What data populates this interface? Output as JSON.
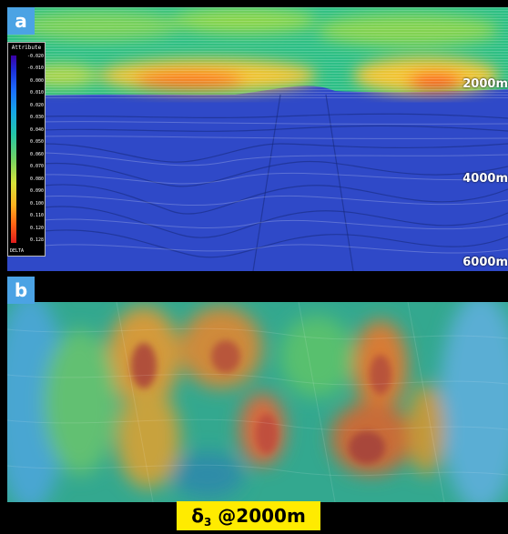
{
  "panel_a": {
    "tag": "a",
    "depth_labels": [
      "2000m",
      "4000m",
      "6000m"
    ],
    "legend": {
      "title": "Attribute",
      "ticks": [
        "-0.020",
        "-0.010",
        "0.000",
        "0.010",
        "0.020",
        "0.030",
        "0.040",
        "0.050",
        "0.060",
        "0.070",
        "0.080",
        "0.090",
        "0.100",
        "0.110",
        "0.120",
        "0.128"
      ],
      "footer": "DELTA"
    }
  },
  "panel_b": {
    "tag": "b"
  },
  "caption": {
    "prefix": "δ",
    "subscript": "3",
    "suffix": " @2000m"
  },
  "colors": {
    "tag_background": "#4ba3e4",
    "caption_background": "#ffeb00",
    "section_blue": "#2f49c8"
  }
}
